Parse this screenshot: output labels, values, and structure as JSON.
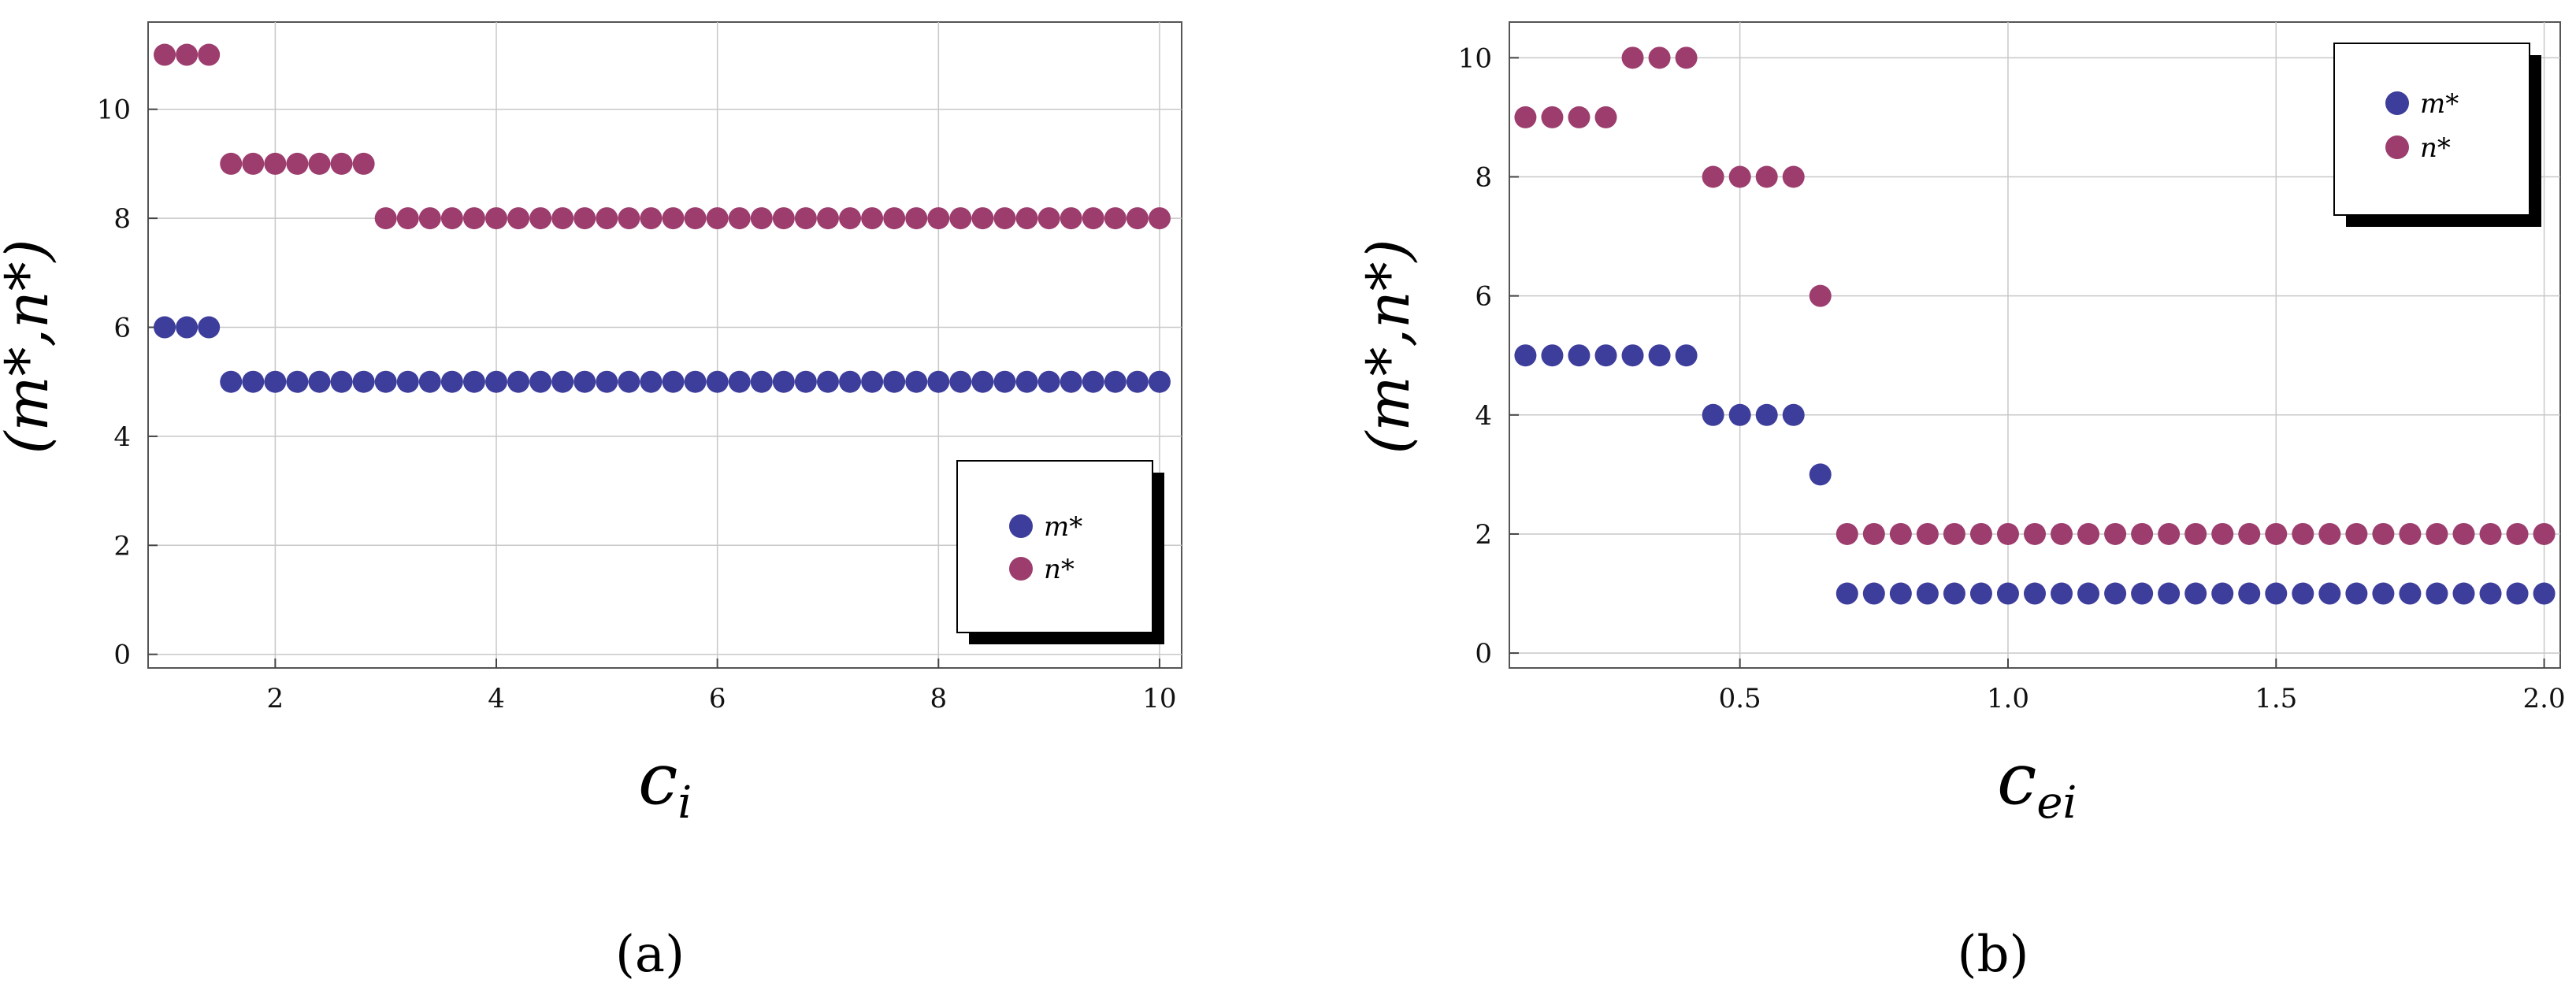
{
  "colors": {
    "m_star": "#3d3d9c",
    "n_star": "#9c3d6e",
    "grid": "#c8c8c8",
    "frame": "#555555"
  },
  "chart_data": [
    {
      "type": "scatter",
      "panel_label": "(a)",
      "xlabel": "c_i",
      "xlabel_main": "c",
      "xlabel_sub": "i",
      "ylabel": "(m*,n*)",
      "xlim": [
        0.85,
        10.2
      ],
      "ylim": [
        -0.25,
        11.6
      ],
      "x_ticks": [
        2,
        4,
        6,
        8,
        10
      ],
      "x_tick_labels": [
        "2",
        "4",
        "6",
        "8",
        "10"
      ],
      "y_ticks": [
        0,
        2,
        4,
        6,
        8,
        10
      ],
      "y_tick_labels": [
        "0",
        "2",
        "4",
        "6",
        "8",
        "10"
      ],
      "grid": true,
      "legend": {
        "placement": "bottom-right",
        "entries": [
          "m*",
          "n*"
        ]
      },
      "x": [
        1.0,
        1.2,
        1.4,
        1.6,
        1.8,
        2.0,
        2.2,
        2.4,
        2.6,
        2.8,
        3.0,
        3.2,
        3.4,
        3.6,
        3.8,
        4.0,
        4.2,
        4.4,
        4.6,
        4.8,
        5.0,
        5.2,
        5.4,
        5.6,
        5.8,
        6.0,
        6.2,
        6.4,
        6.6,
        6.8,
        7.0,
        7.2,
        7.4,
        7.6,
        7.8,
        8.0,
        8.2,
        8.4,
        8.6,
        8.8,
        9.0,
        9.2,
        9.4,
        9.6,
        9.8,
        10.0
      ],
      "series": [
        {
          "name": "m*",
          "values": [
            6,
            6,
            6,
            5,
            5,
            5,
            5,
            5,
            5,
            5,
            5,
            5,
            5,
            5,
            5,
            5,
            5,
            5,
            5,
            5,
            5,
            5,
            5,
            5,
            5,
            5,
            5,
            5,
            5,
            5,
            5,
            5,
            5,
            5,
            5,
            5,
            5,
            5,
            5,
            5,
            5,
            5,
            5,
            5,
            5,
            5
          ]
        },
        {
          "name": "n*",
          "values": [
            11,
            11,
            11,
            9,
            9,
            9,
            9,
            9,
            9,
            9,
            8,
            8,
            8,
            8,
            8,
            8,
            8,
            8,
            8,
            8,
            8,
            8,
            8,
            8,
            8,
            8,
            8,
            8,
            8,
            8,
            8,
            8,
            8,
            8,
            8,
            8,
            8,
            8,
            8,
            8,
            8,
            8,
            8,
            8,
            8,
            8
          ]
        }
      ]
    },
    {
      "type": "scatter",
      "panel_label": "(b)",
      "xlabel": "c_ei",
      "xlabel_main": "c",
      "xlabel_sub": "ei",
      "ylabel": "(m*,n*)",
      "xlim": [
        0.07,
        2.03
      ],
      "ylim": [
        -0.25,
        10.6
      ],
      "x_ticks": [
        0.5,
        1.0,
        1.5,
        2.0
      ],
      "x_tick_labels": [
        "0.5",
        "1.0",
        "1.5",
        "2.0"
      ],
      "y_ticks": [
        0,
        2,
        4,
        6,
        8,
        10
      ],
      "y_tick_labels": [
        "0",
        "2",
        "4",
        "6",
        "8",
        "10"
      ],
      "grid": true,
      "legend": {
        "placement": "top-right",
        "entries": [
          "m*",
          "n*"
        ]
      },
      "x": [
        0.1,
        0.15,
        0.2,
        0.25,
        0.3,
        0.35,
        0.4,
        0.45,
        0.5,
        0.55,
        0.6,
        0.65,
        0.7,
        0.75,
        0.8,
        0.85,
        0.9,
        0.95,
        1.0,
        1.05,
        1.1,
        1.15,
        1.2,
        1.25,
        1.3,
        1.35,
        1.4,
        1.45,
        1.5,
        1.55,
        1.6,
        1.65,
        1.7,
        1.75,
        1.8,
        1.85,
        1.9,
        1.95,
        2.0
      ],
      "series": [
        {
          "name": "m*",
          "values": [
            5,
            5,
            5,
            5,
            5,
            5,
            5,
            4,
            4,
            4,
            4,
            3,
            1,
            1,
            1,
            1,
            1,
            1,
            1,
            1,
            1,
            1,
            1,
            1,
            1,
            1,
            1,
            1,
            1,
            1,
            1,
            1,
            1,
            1,
            1,
            1,
            1,
            1,
            1
          ]
        },
        {
          "name": "n*",
          "values": [
            9,
            9,
            9,
            9,
            10,
            10,
            10,
            8,
            8,
            8,
            8,
            6,
            2,
            2,
            2,
            2,
            2,
            2,
            2,
            2,
            2,
            2,
            2,
            2,
            2,
            2,
            2,
            2,
            2,
            2,
            2,
            2,
            2,
            2,
            2,
            2,
            2,
            2,
            2
          ]
        }
      ]
    }
  ]
}
